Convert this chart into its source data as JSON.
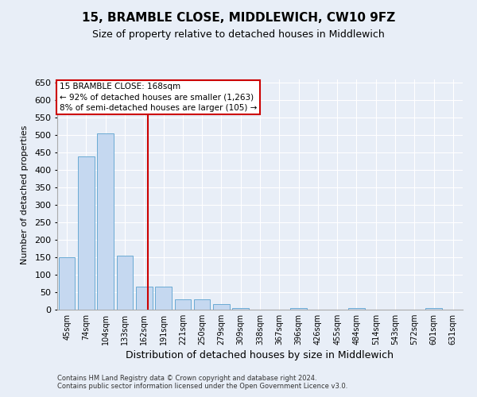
{
  "title": "15, BRAMBLE CLOSE, MIDDLEWICH, CW10 9FZ",
  "subtitle": "Size of property relative to detached houses in Middlewich",
  "xlabel": "Distribution of detached houses by size in Middlewich",
  "ylabel": "Number of detached properties",
  "footer_line1": "Contains HM Land Registry data © Crown copyright and database right 2024.",
  "footer_line2": "Contains public sector information licensed under the Open Government Licence v3.0.",
  "bar_color": "#c5d8f0",
  "bar_edge_color": "#6aaad4",
  "categories": [
    "45sqm",
    "74sqm",
    "104sqm",
    "133sqm",
    "162sqm",
    "191sqm",
    "221sqm",
    "250sqm",
    "279sqm",
    "309sqm",
    "338sqm",
    "367sqm",
    "396sqm",
    "426sqm",
    "455sqm",
    "484sqm",
    "514sqm",
    "543sqm",
    "572sqm",
    "601sqm",
    "631sqm"
  ],
  "values": [
    150,
    440,
    505,
    155,
    65,
    65,
    30,
    30,
    15,
    4,
    0,
    0,
    4,
    0,
    0,
    4,
    0,
    0,
    0,
    4,
    0
  ],
  "ylim": [
    0,
    660
  ],
  "yticks": [
    0,
    50,
    100,
    150,
    200,
    250,
    300,
    350,
    400,
    450,
    500,
    550,
    600,
    650
  ],
  "annotation_line1": "15 BRAMBLE CLOSE: 168sqm",
  "annotation_line2": "← 92% of detached houses are smaller (1,263)",
  "annotation_line3": "8% of semi-detached houses are larger (105) →",
  "vline_color": "#cc0000",
  "annotation_box_color": "#ffffff",
  "annotation_box_edge": "#cc0000",
  "bg_color": "#e8eef7",
  "grid_color": "#ffffff",
  "title_fontsize": 11,
  "subtitle_fontsize": 9,
  "ylabel_fontsize": 8,
  "xlabel_fontsize": 9,
  "tick_fontsize": 8,
  "xtick_fontsize": 7,
  "annotation_fontsize": 7.5,
  "footer_fontsize": 6
}
